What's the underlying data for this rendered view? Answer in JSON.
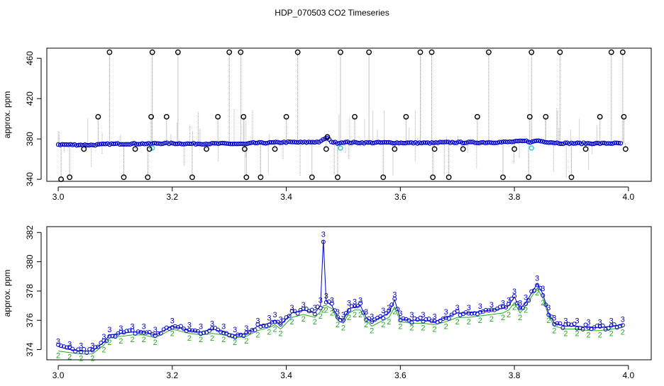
{
  "title": "HDP_070503  CO2 Timeseries",
  "chart_data": [
    {
      "type": "scatter",
      "title": "",
      "xlabel": "",
      "ylabel": "approx. ppm",
      "xlim": [
        2.98,
        4.04
      ],
      "ylim": [
        338,
        470
      ],
      "x_ticks": [
        "3.0",
        "3.2",
        "3.4",
        "3.6",
        "3.8",
        "4.0"
      ],
      "x_tick_values": [
        3.0,
        3.2,
        3.4,
        3.6,
        3.8,
        4.0
      ],
      "y_ticks": [
        "340",
        "380",
        "420",
        "460"
      ],
      "y_tick_values": [
        340,
        380,
        420,
        460
      ],
      "grid": false,
      "baseline_series": {
        "color": "#0000cc",
        "x": [
          3.0,
          3.03,
          3.06,
          3.09,
          3.12,
          3.15,
          3.16,
          3.17,
          3.2,
          3.23,
          3.26,
          3.29,
          3.32,
          3.33,
          3.34,
          3.37,
          3.4,
          3.43,
          3.46,
          3.47,
          3.48,
          3.49,
          3.5,
          3.51,
          3.54,
          3.57,
          3.6,
          3.63,
          3.66,
          3.67,
          3.7,
          3.73,
          3.76,
          3.79,
          3.82,
          3.83,
          3.84,
          3.85,
          3.88,
          3.91,
          3.94,
          3.97,
          3.99
        ],
        "y": [
          374.5,
          374.2,
          374.0,
          375.0,
          375.2,
          375.3,
          375.1,
          375.6,
          375.6,
          375.2,
          375.3,
          375.4,
          375.0,
          374.8,
          376.0,
          376.2,
          376.8,
          376.6,
          377.2,
          381.3,
          377.0,
          376.0,
          376.8,
          376.5,
          376.3,
          376.4,
          376.2,
          376.1,
          376.0,
          376.5,
          376.6,
          376.5,
          376.6,
          377.0,
          378.0,
          376.8,
          378.5,
          377.5,
          375.8,
          375.7,
          375.6,
          375.7,
          375.7
        ]
      },
      "highlight_points": {
        "color": "#33cccc",
        "x": [
          3.165,
          3.495,
          3.83
        ],
        "y": [
          371,
          371,
          371
        ]
      },
      "outliers": {
        "color": "#000000",
        "x": [
          3.005,
          3.02,
          3.045,
          3.07,
          3.09,
          3.115,
          3.135,
          3.157,
          3.16,
          3.163,
          3.165,
          3.19,
          3.21,
          3.235,
          3.26,
          3.28,
          3.3,
          3.32,
          3.325,
          3.327,
          3.33,
          3.355,
          3.38,
          3.4,
          3.42,
          3.445,
          3.47,
          3.472,
          3.49,
          3.495,
          3.52,
          3.545,
          3.57,
          3.59,
          3.61,
          3.635,
          3.655,
          3.657,
          3.66,
          3.685,
          3.71,
          3.735,
          3.755,
          3.78,
          3.8,
          3.825,
          3.827,
          3.83,
          3.855,
          3.88,
          3.9,
          3.925,
          3.95,
          3.97,
          3.99,
          3.992,
          3.995
        ],
        "y": [
          340,
          342,
          370,
          402,
          466,
          342,
          370,
          342,
          370,
          402,
          466,
          402,
          466,
          342,
          370,
          402,
          466,
          466,
          402,
          370,
          342,
          342,
          370,
          402,
          466,
          342,
          370,
          382,
          342,
          466,
          402,
          466,
          342,
          370,
          402,
          466,
          466,
          342,
          370,
          342,
          370,
          402,
          466,
          342,
          370,
          342,
          402,
          466,
          402,
          466,
          342,
          370,
          402,
          466,
          466,
          402,
          370
        ]
      }
    },
    {
      "type": "line",
      "title": "",
      "xlabel": "",
      "ylabel": "approx. ppm",
      "xlim": [
        2.98,
        4.04
      ],
      "ylim": [
        373.3,
        382.4
      ],
      "x_ticks": [
        "3.0",
        "3.2",
        "3.4",
        "3.6",
        "3.8",
        "4.0"
      ],
      "x_tick_values": [
        3.0,
        3.2,
        3.4,
        3.6,
        3.8,
        4.0
      ],
      "y_ticks": [
        "374",
        "376",
        "378",
        "380",
        "382"
      ],
      "y_tick_values": [
        374,
        376,
        378,
        380,
        382
      ],
      "grid": false,
      "series": [
        {
          "marker": "3",
          "color": "#0000cc",
          "x": [
            3.0,
            3.02,
            3.04,
            3.06,
            3.08,
            3.09,
            3.11,
            3.13,
            3.15,
            3.17,
            3.2,
            3.23,
            3.25,
            3.27,
            3.29,
            3.31,
            3.33,
            3.35,
            3.37,
            3.38,
            3.39,
            3.41,
            3.43,
            3.45,
            3.46,
            3.465,
            3.47,
            3.48,
            3.49,
            3.5,
            3.51,
            3.52,
            3.53,
            3.54,
            3.55,
            3.57,
            3.58,
            3.59,
            3.6,
            3.62,
            3.64,
            3.66,
            3.68,
            3.7,
            3.72,
            3.74,
            3.76,
            3.78,
            3.79,
            3.8,
            3.81,
            3.82,
            3.84,
            3.85,
            3.86,
            3.87,
            3.89,
            3.91,
            3.93,
            3.95,
            3.97,
            3.99
          ],
          "y": [
            374.2,
            374.0,
            373.9,
            373.9,
            374.5,
            375.0,
            375.1,
            375.2,
            375.2,
            375.0,
            375.6,
            375.3,
            375.2,
            375.4,
            375.2,
            375.0,
            375.1,
            375.6,
            375.8,
            376.0,
            375.7,
            376.5,
            376.7,
            376.5,
            377.0,
            381.5,
            377.3,
            377.0,
            376.2,
            376.0,
            376.8,
            376.9,
            377.0,
            376.2,
            375.9,
            376.3,
            376.5,
            377.4,
            376.1,
            376.0,
            376.0,
            375.9,
            376.2,
            376.5,
            376.5,
            376.6,
            376.7,
            376.8,
            377.0,
            377.6,
            376.8,
            377.2,
            378.5,
            377.8,
            376.5,
            375.8,
            375.6,
            375.6,
            375.5,
            375.5,
            375.6,
            375.7
          ]
        },
        {
          "marker": "2",
          "color": "#22aa22",
          "x": [
            3.0,
            3.02,
            3.04,
            3.06,
            3.08,
            3.09,
            3.11,
            3.13,
            3.15,
            3.17,
            3.2,
            3.23,
            3.25,
            3.27,
            3.29,
            3.31,
            3.33,
            3.35,
            3.37,
            3.38,
            3.39,
            3.41,
            3.43,
            3.45,
            3.46,
            3.465,
            3.47,
            3.48,
            3.49,
            3.5,
            3.51,
            3.52,
            3.53,
            3.54,
            3.55,
            3.57,
            3.58,
            3.59,
            3.6,
            3.62,
            3.64,
            3.66,
            3.68,
            3.7,
            3.72,
            3.74,
            3.76,
            3.78,
            3.79,
            3.8,
            3.81,
            3.82,
            3.84,
            3.85,
            3.86,
            3.87,
            3.89,
            3.91,
            3.93,
            3.95,
            3.97,
            3.99
          ],
          "y": [
            373.9,
            373.8,
            373.7,
            373.7,
            374.3,
            374.8,
            374.9,
            375.0,
            375.0,
            374.8,
            375.4,
            375.1,
            375.0,
            375.1,
            375.0,
            374.8,
            374.9,
            375.3,
            375.5,
            375.7,
            375.4,
            376.2,
            376.4,
            376.2,
            376.6,
            377.0,
            377.0,
            376.8,
            376.0,
            375.8,
            376.5,
            376.7,
            376.7,
            376.0,
            375.6,
            376.0,
            376.2,
            376.9,
            375.9,
            375.8,
            375.8,
            375.7,
            375.9,
            376.2,
            376.2,
            376.3,
            376.4,
            376.5,
            376.7,
            377.2,
            376.5,
            377.0,
            378.2,
            377.5,
            376.3,
            375.6,
            375.4,
            375.4,
            375.3,
            375.3,
            375.4,
            375.5
          ]
        }
      ]
    }
  ]
}
